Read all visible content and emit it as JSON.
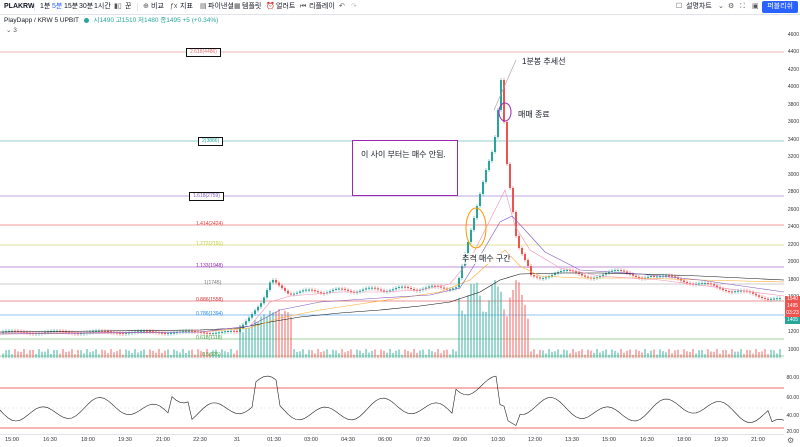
{
  "toolbar": {
    "symbol": "PLAKRW",
    "intervals": [
      "1분",
      "5분",
      "15분",
      "30분"
    ],
    "hour": "1시간",
    "candle_icon": "candles-icon",
    "chart_type": "꾼",
    "indicator_add": "⊕",
    "compare": "비교",
    "indicators": "지표",
    "financials": "파이낸셜",
    "templates": "템플릿",
    "alert": "얼러트",
    "replay": "리플레이",
    "layout": "설명차트",
    "publish": "퍼블리쉬"
  },
  "legend": {
    "title": "PlayDapp / KRW  5  UPBIT",
    "ohlc": "시1490  고1510  저1480  종1495  +5 (+0.34%)",
    "sub": "⌄ 3"
  },
  "y_ticks": [
    "4600",
    "4400",
    "4200",
    "4000",
    "3800",
    "3600",
    "3400",
    "3200",
    "3000",
    "2800",
    "2600",
    "2400",
    "2200",
    "2000",
    "1800",
    "1600",
    "1400",
    "1200",
    "1000",
    "80.00",
    "60.00",
    "40.00",
    "20.00"
  ],
  "price_badges": [
    {
      "text": "1540",
      "color": "#ef5350"
    },
    {
      "text": "1495",
      "color": "#ef5350"
    },
    {
      "text": "03:23",
      "color": "#ef5350"
    },
    {
      "text": "1405",
      "color": "#26a69a"
    }
  ],
  "x_ticks": [
    "15:00",
    "16:30",
    "18:00",
    "19:30",
    "21:00",
    "22:30",
    "31",
    "01:30",
    "03:00",
    "04:30",
    "06:00",
    "07:30",
    "09:00",
    "10:30",
    "12:00",
    "13:30",
    "15:00",
    "16:30",
    "18:00",
    "19:30",
    "21:00"
  ],
  "fib_levels": [
    {
      "label": "2.618(4486)",
      "color": "#e57373",
      "boxed": true
    },
    {
      "label": "2(3886)",
      "color": "#26a69a",
      "boxed": true
    },
    {
      "label": "1.618(2759)",
      "color": "#7e57c2",
      "boxed": true
    },
    {
      "label": "1.414(2424)",
      "color": "#e53935",
      "boxed": false
    },
    {
      "label": "1.272(2191)",
      "color": "#c0ca33",
      "boxed": false
    },
    {
      "label": "1.133(1948)",
      "color": "#8e24aa",
      "boxed": false
    },
    {
      "label": "1(1745)",
      "color": "#757575",
      "boxed": false
    },
    {
      "label": "0.886(1558)",
      "color": "#d32f2f",
      "boxed": false
    },
    {
      "label": "0.786(1394)",
      "color": "#1e88e5",
      "boxed": false
    },
    {
      "label": "0.618(1118)",
      "color": "#43a047",
      "boxed": false
    },
    {
      "label": "0.5(925)",
      "color": "#43a047",
      "boxed": false
    }
  ],
  "annotations": {
    "trendline": "1분봉 추세선",
    "exit": "매매 종료",
    "chase": "추격 매수 구간",
    "note": "이 사이 부터는 매수 안됨."
  },
  "colors": {
    "up": "#26a69a",
    "down": "#ef5350",
    "accent": "#2962ff"
  }
}
